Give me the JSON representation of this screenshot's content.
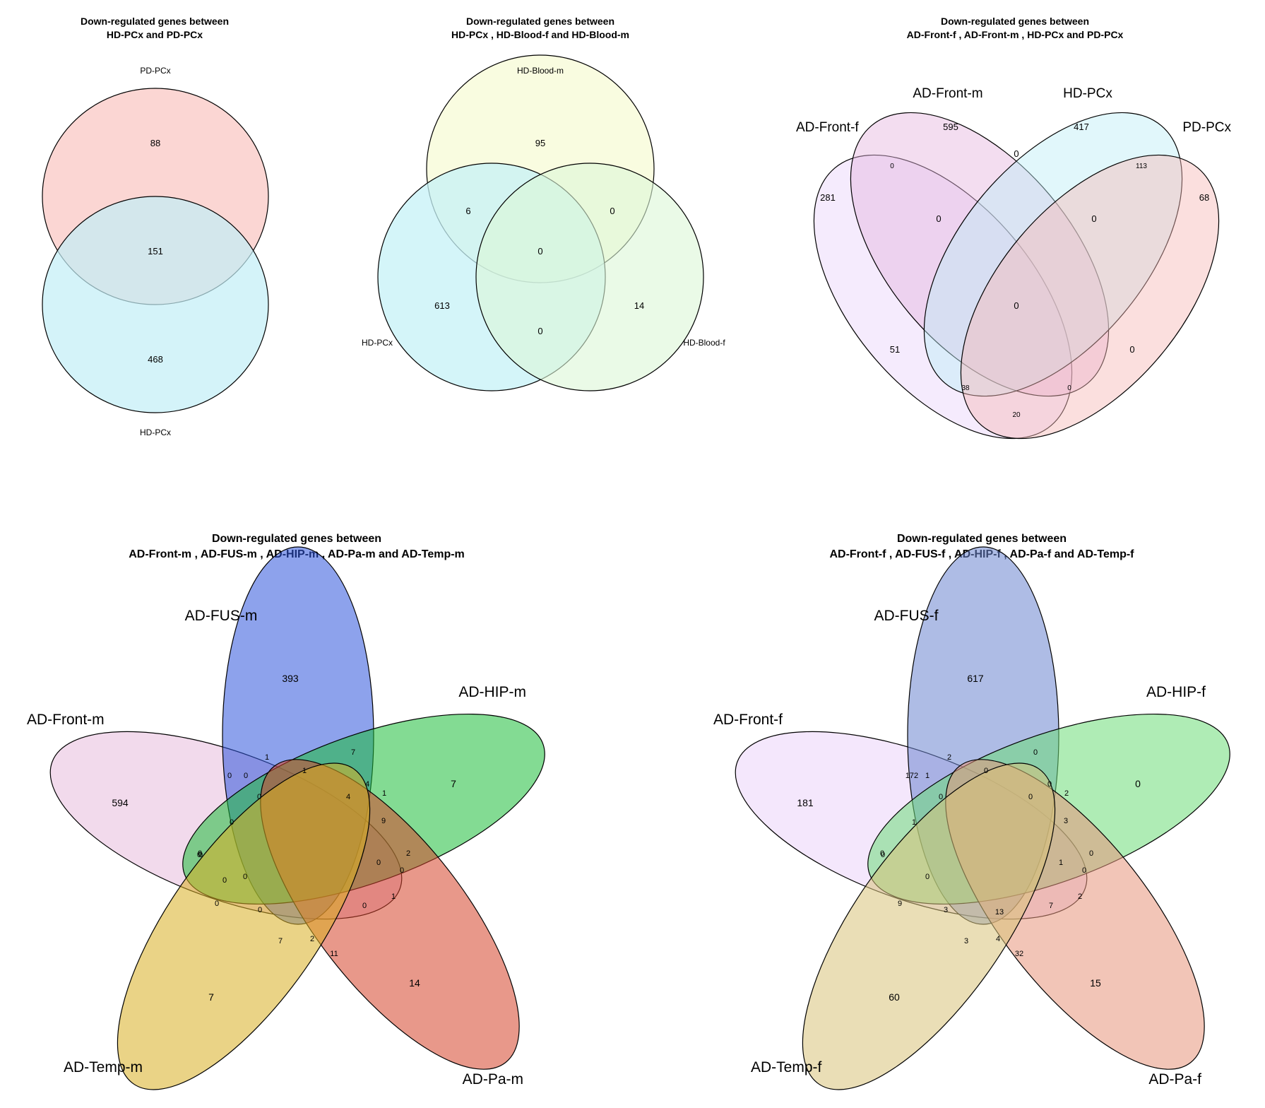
{
  "diagrams": [
    {
      "id": "d1",
      "title": [
        "Down-regulated genes between",
        "HD-PCx and PD-PCx"
      ],
      "sets": [
        {
          "name": "PD-PCx",
          "color": "#F9C4C1"
        },
        {
          "name": "HD-PCx",
          "color": "#C2EEF6"
        }
      ],
      "regions": [
        {
          "sets": [
            "PD-PCx"
          ],
          "count": "88"
        },
        {
          "sets": [
            "PD-PCx",
            "HD-PCx"
          ],
          "count": "151"
        },
        {
          "sets": [
            "HD-PCx"
          ],
          "count": "468"
        }
      ]
    },
    {
      "id": "d2",
      "title": [
        "Down-regulated genes between",
        "HD-PCx , HD-Blood-f and HD-Blood-m"
      ],
      "sets": [
        {
          "name": "HD-Blood-m",
          "color": "#F8FBD8"
        },
        {
          "name": "HD-PCx",
          "color": "#C6F1F7"
        },
        {
          "name": "HD-Blood-f",
          "color": "#DCF6D7"
        }
      ],
      "regions": [
        {
          "sets": [
            "HD-Blood-m"
          ],
          "count": "95"
        },
        {
          "sets": [
            "HD-Blood-m",
            "HD-PCx"
          ],
          "count": "6"
        },
        {
          "sets": [
            "HD-Blood-m",
            "HD-Blood-f"
          ],
          "count": "0"
        },
        {
          "sets": [
            "HD-Blood-m",
            "HD-PCx",
            "HD-Blood-f"
          ],
          "count": "0"
        },
        {
          "sets": [
            "HD-PCx"
          ],
          "count": "613"
        },
        {
          "sets": [
            "HD-Blood-f"
          ],
          "count": "14"
        },
        {
          "sets": [
            "HD-PCx",
            "HD-Blood-f"
          ],
          "count": "0"
        }
      ]
    },
    {
      "id": "d3",
      "title": [
        "Down-regulated genes between",
        "AD-Front-f , AD-Front-m , HD-PCx and PD-PCx"
      ],
      "sets": [
        {
          "name": "AD-Front-f",
          "color": "#E9D2FA"
        },
        {
          "name": "AD-Front-m",
          "color": "#E4B4DE"
        },
        {
          "name": "HD-PCx",
          "color": "#BDEEF6"
        },
        {
          "name": "PD-PCx",
          "color": "#F7B9B5"
        }
      ],
      "regions": [
        {
          "label": "AD-Front-m only",
          "count": "595"
        },
        {
          "label": "HD-PCx only",
          "count": "417"
        },
        {
          "label": "AD-Front-m + HD-PCx",
          "count": "0"
        },
        {
          "label": "AD-Front-f + AD-Front-m",
          "count": "0"
        },
        {
          "label": "HD-PCx + PD-PCx",
          "count": "113"
        },
        {
          "label": "AD-Front-f only",
          "count": "281"
        },
        {
          "label": "AD-Front-f + AD-Front-m + HD-PCx",
          "count": "0"
        },
        {
          "label": "AD-Front-m + HD-PCx + PD-PCx",
          "count": "0"
        },
        {
          "label": "PD-PCx only",
          "count": "68"
        },
        {
          "label": "all four",
          "count": "0"
        },
        {
          "label": "AD-Front-f + HD-PCx",
          "count": "51"
        },
        {
          "label": "AD-Front-m + PD-PCx",
          "count": "0"
        },
        {
          "label": "AD-Front-f + HD-PCx + PD-PCx",
          "count": "38"
        },
        {
          "label": "AD-Front-f + AD-Front-m + PD-PCx",
          "count": "0"
        },
        {
          "label": "AD-Front-f + PD-PCx",
          "count": "20"
        }
      ]
    },
    {
      "id": "d4",
      "title": [
        "Down-regulated genes between",
        "AD-Front-m , AD-FUS-m , AD-HIP-m , AD-Pa-m and AD-Temp-m"
      ],
      "sets": [
        {
          "name": "AD-Front-m",
          "color": "#E8BCDD"
        },
        {
          "name": "AD-FUS-m",
          "color": "#2F55DD"
        },
        {
          "name": "AD-HIP-m",
          "color": "#1EBD3A"
        },
        {
          "name": "AD-Pa-m",
          "color": "#D5442A"
        },
        {
          "name": "AD-Temp-m",
          "color": "#D8AE22"
        }
      ],
      "counts": [
        "393",
        "7",
        "594",
        "7",
        "14",
        "1",
        "0",
        "0",
        "7",
        "1",
        "4",
        "1",
        "0",
        "4",
        "9",
        "0",
        "0",
        "2",
        "0",
        "0",
        "0",
        "0",
        "1",
        "0",
        "0",
        "0",
        "0",
        "0",
        "7",
        "2",
        "11"
      ]
    },
    {
      "id": "d5",
      "title": [
        "Down-regulated genes between",
        "AD-Front-f , AD-FUS-f , AD-HIP-f , AD-Pa-f and AD-Temp-f"
      ],
      "sets": [
        {
          "name": "AD-Front-f",
          "color": "#EBD4FA"
        },
        {
          "name": "AD-FUS-f",
          "color": "#6C85CF"
        },
        {
          "name": "AD-HIP-f",
          "color": "#6EDD78"
        },
        {
          "name": "AD-Pa-f",
          "color": "#E8957C"
        },
        {
          "name": "AD-Temp-f",
          "color": "#D8C37A"
        }
      ],
      "counts": [
        "617",
        "0",
        "181",
        "60",
        "15",
        "2",
        "172",
        "1",
        "0",
        "0",
        "0",
        "2",
        "0",
        "0",
        "3",
        "1",
        "0",
        "0",
        "1",
        "0",
        "0",
        "0",
        "9",
        "2",
        "7",
        "3",
        "13",
        "3",
        "4",
        "32"
      ]
    }
  ]
}
